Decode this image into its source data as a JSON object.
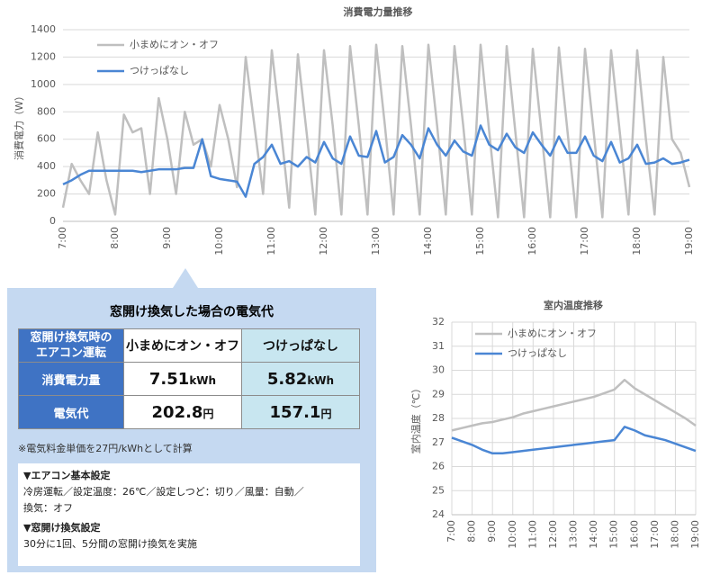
{
  "chart_data": [
    {
      "type": "line",
      "title": "消費電力量推移",
      "y_label": "消費電力（W）",
      "categories": [
        "7:00",
        null,
        null,
        null,
        null,
        null,
        "8:00",
        null,
        null,
        null,
        null,
        null,
        "9:00",
        null,
        null,
        null,
        null,
        null,
        "10:00",
        null,
        null,
        null,
        null,
        null,
        "11:00",
        null,
        null,
        null,
        null,
        null,
        "12:00",
        null,
        null,
        null,
        null,
        null,
        "13:00",
        null,
        null,
        null,
        null,
        null,
        "14:00",
        null,
        null,
        null,
        null,
        null,
        "15:00",
        null,
        null,
        null,
        null,
        null,
        "16:00",
        null,
        null,
        null,
        null,
        null,
        "17:00",
        null,
        null,
        null,
        null,
        null,
        "18:00",
        null,
        null,
        null,
        null,
        null,
        "19:00"
      ],
      "series": [
        {
          "name": "小まめにオン・オフ",
          "color": "#bfbfbf",
          "values": [
            100,
            420,
            300,
            200,
            650,
            300,
            50,
            780,
            650,
            680,
            200,
            900,
            600,
            200,
            800,
            560,
            600,
            400,
            850,
            600,
            250,
            1200,
            700,
            200,
            1250,
            700,
            100,
            1220,
            650,
            50,
            1250,
            700,
            50,
            1280,
            700,
            50,
            1290,
            700,
            50,
            1280,
            700,
            50,
            1290,
            700,
            50,
            1280,
            700,
            50,
            1290,
            650,
            30,
            1280,
            650,
            30,
            1260,
            650,
            30,
            1270,
            650,
            30,
            1260,
            650,
            30,
            1250,
            650,
            50,
            1250,
            600,
            50,
            1200,
            600,
            500,
            250
          ]
        },
        {
          "name": "つけっぱなし",
          "color": "#4a86d4",
          "values": [
            270,
            300,
            340,
            370,
            370,
            370,
            370,
            370,
            370,
            360,
            370,
            380,
            380,
            380,
            390,
            390,
            600,
            330,
            310,
            300,
            290,
            180,
            420,
            470,
            560,
            420,
            440,
            400,
            470,
            430,
            580,
            460,
            420,
            620,
            480,
            470,
            660,
            430,
            470,
            630,
            560,
            460,
            680,
            560,
            480,
            590,
            510,
            480,
            700,
            560,
            520,
            640,
            540,
            500,
            650,
            560,
            480,
            620,
            500,
            500,
            620,
            480,
            440,
            580,
            430,
            460,
            560,
            420,
            430,
            460,
            420,
            430,
            450
          ]
        }
      ],
      "ylim": [
        0,
        1400
      ],
      "yticks": [
        0,
        200,
        400,
        600,
        800,
        1000,
        1200,
        1400
      ],
      "grid": true,
      "xgrid": false
    },
    {
      "type": "line",
      "title": "室内温度推移",
      "y_label": "室内温度（℃）",
      "categories": [
        "7:00",
        null,
        "8:00",
        null,
        "9:00",
        null,
        "10:00",
        null,
        "11:00",
        null,
        "12:00",
        null,
        "13:00",
        null,
        "14:00",
        null,
        "15:00",
        null,
        "16:00",
        null,
        "17:00",
        null,
        "18:00",
        null,
        "19:00"
      ],
      "series": [
        {
          "name": "小まめにオン・オフ",
          "color": "#bfbfbf",
          "values": [
            27.5,
            27.6,
            27.7,
            27.8,
            27.85,
            27.95,
            28.05,
            28.2,
            28.3,
            28.4,
            28.5,
            28.6,
            28.7,
            28.8,
            28.9,
            29.05,
            29.2,
            29.6,
            29.25,
            29.0,
            28.75,
            28.5,
            28.25,
            28.0,
            27.7
          ]
        },
        {
          "name": "つけっぱなし",
          "color": "#4a86d4",
          "values": [
            27.2,
            27.05,
            26.9,
            26.7,
            26.55,
            26.55,
            26.6,
            26.65,
            26.7,
            26.75,
            26.8,
            26.85,
            26.9,
            26.95,
            27.0,
            27.05,
            27.1,
            27.65,
            27.5,
            27.3,
            27.2,
            27.1,
            26.95,
            26.8,
            26.65
          ]
        }
      ],
      "ylim": [
        24,
        32
      ],
      "yticks": [
        24,
        25,
        26,
        27,
        28,
        29,
        30,
        31,
        32
      ],
      "grid": true,
      "xgrid": true
    }
  ],
  "panel": {
    "title": "窓開け換気した場合の電気代",
    "table": {
      "corner": [
        "窓開け換気時の",
        "エアコン運転"
      ],
      "columns": [
        "小まめにオン・オフ",
        "つけっぱなし"
      ],
      "rows": [
        {
          "label": "消費電力量",
          "cells": [
            {
              "value": "7.51",
              "unit": "kWh"
            },
            {
              "value": "5.82",
              "unit": "kWh"
            }
          ]
        },
        {
          "label": "電気代",
          "cells": [
            {
              "value": "202.8",
              "unit": "円"
            },
            {
              "value": "157.1",
              "unit": "円"
            }
          ]
        }
      ]
    },
    "note": "※電気料金単価を27円/kWhとして計算",
    "settings": [
      {
        "heading": "▼エアコン基本設定",
        "lines": [
          "冷房運転／設定温度：26℃／設定しつど：切り／風量：自動／",
          "換気：オフ"
        ]
      },
      {
        "heading": "▼窓開け換気設定",
        "lines": [
          "30分に1回、5分間の窓開け換気を実施"
        ]
      }
    ]
  }
}
